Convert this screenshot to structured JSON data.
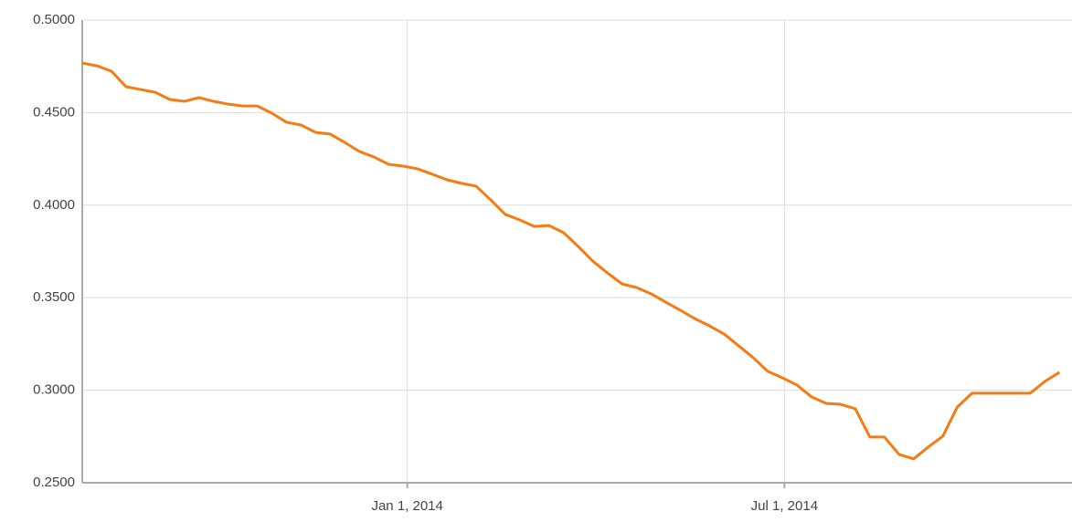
{
  "chart_data": {
    "type": "line",
    "x": [
      "2013-07-29",
      "2013-08-05",
      "2013-08-12",
      "2013-08-19",
      "2013-08-26",
      "2013-09-02",
      "2013-09-09",
      "2013-09-16",
      "2013-09-23",
      "2013-09-30",
      "2013-10-07",
      "2013-10-14",
      "2013-10-21",
      "2013-10-28",
      "2013-11-04",
      "2013-11-11",
      "2013-11-18",
      "2013-11-25",
      "2013-12-02",
      "2013-12-09",
      "2013-12-16",
      "2013-12-23",
      "2013-12-30",
      "2014-01-06",
      "2014-01-13",
      "2014-01-20",
      "2014-01-27",
      "2014-02-03",
      "2014-02-10",
      "2014-02-17",
      "2014-02-24",
      "2014-03-03",
      "2014-03-10",
      "2014-03-17",
      "2014-03-24",
      "2014-03-31",
      "2014-04-07",
      "2014-04-14",
      "2014-04-21",
      "2014-04-28",
      "2014-05-05",
      "2014-05-12",
      "2014-05-19",
      "2014-05-26",
      "2014-06-02",
      "2014-06-09",
      "2014-06-16",
      "2014-06-23",
      "2014-06-30",
      "2014-07-07",
      "2014-07-14",
      "2014-07-21",
      "2014-07-28",
      "2014-08-04",
      "2014-08-11",
      "2014-08-18",
      "2014-08-25",
      "2014-09-01",
      "2014-09-08",
      "2014-09-15",
      "2014-09-22",
      "2014-09-29",
      "2014-10-06",
      "2014-10-13",
      "2014-10-20",
      "2014-10-27",
      "2014-11-03",
      "2014-11-10"
    ],
    "series": [
      {
        "color": "#f57c14",
        "values": [
          0.4768,
          0.4753,
          0.4724,
          0.464,
          0.4625,
          0.461,
          0.4571,
          0.4561,
          0.4581,
          0.4561,
          0.4546,
          0.4536,
          0.4536,
          0.4497,
          0.4448,
          0.4433,
          0.4393,
          0.4384,
          0.4339,
          0.429,
          0.426,
          0.4221,
          0.4211,
          0.4196,
          0.4167,
          0.4137,
          0.4118,
          0.4103,
          0.4029,
          0.395,
          0.392,
          0.3885,
          0.389,
          0.3851,
          0.3777,
          0.3698,
          0.3634,
          0.3575,
          0.3555,
          0.3521,
          0.3476,
          0.3432,
          0.3387,
          0.3348,
          0.3304,
          0.324,
          0.3176,
          0.3102,
          0.3067,
          0.3028,
          0.2964,
          0.2929,
          0.2924,
          0.29,
          0.2747,
          0.2747,
          0.2653,
          0.2629,
          0.2693,
          0.2752,
          0.291,
          0.2984,
          0.2984,
          0.2984,
          0.2984,
          0.2984,
          0.3048,
          0.3097
        ]
      }
    ],
    "xlim": [
      "2013-07-29",
      "2014-11-16"
    ],
    "xticks": [
      {
        "value": "2014-01-01",
        "label": "Jan 1, 2014"
      },
      {
        "value": "2014-07-01",
        "label": "Jul 1, 2014"
      }
    ],
    "ylim": [
      0.25,
      0.5
    ],
    "yticks": [
      {
        "value": 0.25,
        "label": "0.2500"
      },
      {
        "value": 0.3,
        "label": "0.3000"
      },
      {
        "value": 0.35,
        "label": "0.3500"
      },
      {
        "value": 0.4,
        "label": "0.4000"
      },
      {
        "value": 0.45,
        "label": "0.4500"
      },
      {
        "value": 0.5,
        "label": "0.5000"
      }
    ],
    "grid": true
  }
}
